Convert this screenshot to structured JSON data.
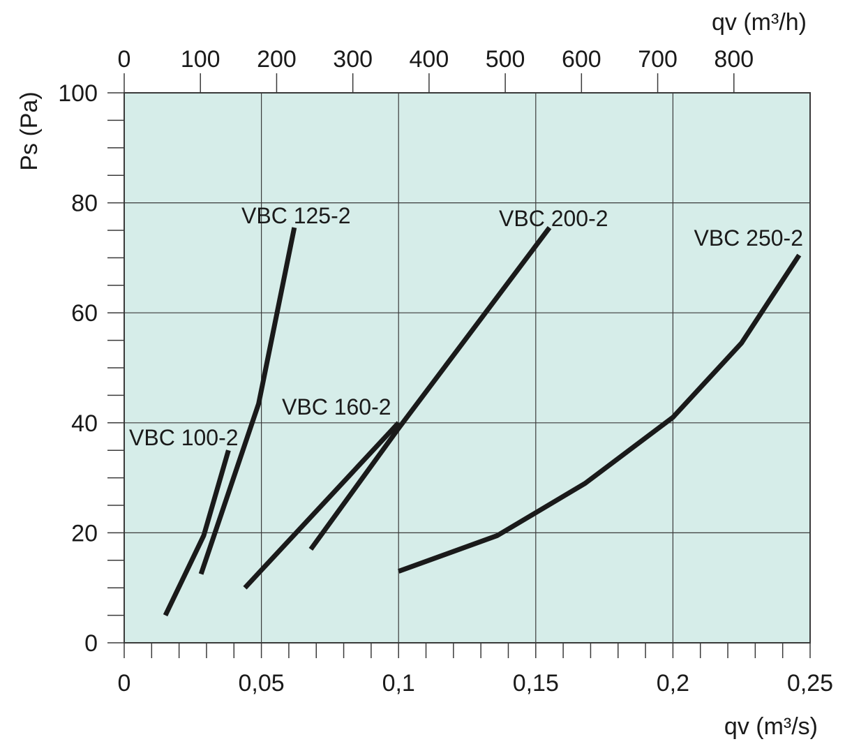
{
  "chart_data": {
    "type": "line",
    "title": "",
    "xlabel": "qv (m³/s)",
    "x2label": "qv (m³/h)",
    "ylabel": "Ps (Pa)",
    "xlim": [
      0,
      0.25
    ],
    "x2lim": [
      0,
      900
    ],
    "ylim": [
      0,
      100
    ],
    "grid": true,
    "plot_background": "#d6ede9",
    "line_color": "#1a1a1a",
    "x_major_ticks": [
      0,
      0.05,
      0.1,
      0.15,
      0.2,
      0.25
    ],
    "x_tick_labels": [
      "0",
      "0,05",
      "0,1",
      "0,15",
      "0,2",
      "0,25"
    ],
    "x_minor_step": 0.01,
    "x2_ticks": [
      0,
      100,
      200,
      300,
      400,
      500,
      600,
      700,
      800
    ],
    "x2_tick_labels": [
      "0",
      "100",
      "200",
      "300",
      "400",
      "500",
      "600",
      "700",
      "800"
    ],
    "y_major_ticks": [
      0,
      20,
      40,
      60,
      80,
      100
    ],
    "y_tick_labels": [
      "0",
      "20",
      "40",
      "60",
      "80",
      "100"
    ],
    "y_minor_step": 5,
    "series": [
      {
        "name": "VBC 100-2",
        "points": [
          [
            0.015,
            5
          ],
          [
            0.029,
            19.5
          ],
          [
            0.038,
            35
          ]
        ]
      },
      {
        "name": "VBC 125-2",
        "points": [
          [
            0.028,
            12.5
          ],
          [
            0.049,
            43.5
          ],
          [
            0.062,
            75.5
          ]
        ]
      },
      {
        "name": "VBC 160-2",
        "points": [
          [
            0.044,
            10
          ],
          [
            0.1,
            40
          ]
        ]
      },
      {
        "name": "VBC 200-2",
        "points": [
          [
            0.068,
            17
          ],
          [
            0.1,
            39
          ],
          [
            0.155,
            75.5
          ]
        ]
      },
      {
        "name": "VBC 250-2",
        "points": [
          [
            0.1,
            13
          ],
          [
            0.136,
            19.5
          ],
          [
            0.168,
            29
          ],
          [
            0.2,
            41
          ],
          [
            0.225,
            54.5
          ],
          [
            0.246,
            70.5
          ]
        ]
      }
    ]
  }
}
